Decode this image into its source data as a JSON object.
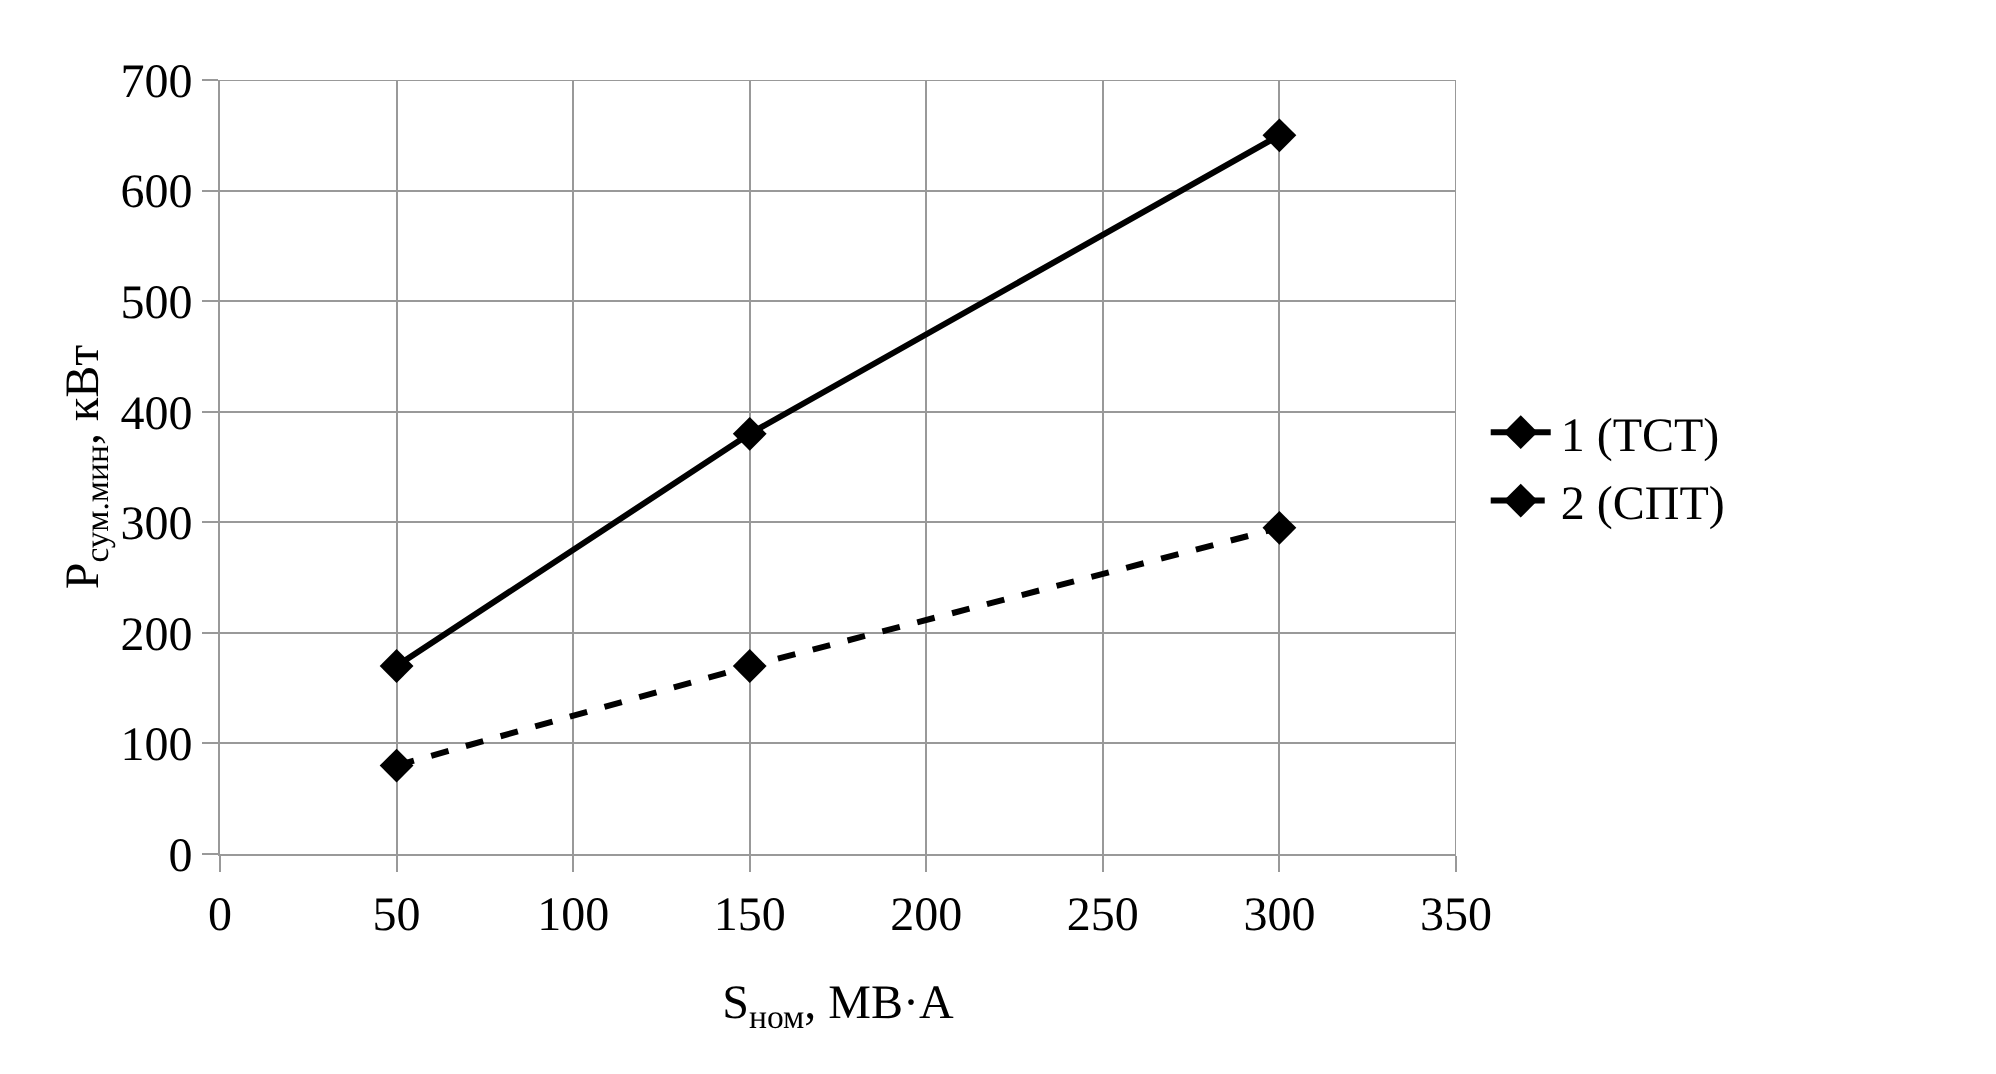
{
  "chart_data": {
    "type": "line",
    "xlabel": "S$_{ном}$, МВ·А",
    "ylabel": "P$_{сум.мин}$, кВт",
    "x": [
      50,
      150,
      300
    ],
    "series": [
      {
        "name": "1 (ТСТ)",
        "color": "#000000",
        "values": [
          170,
          380,
          650
        ],
        "line_style": "solid"
      },
      {
        "name": "2 (СПТ)",
        "color": "#000000",
        "values": [
          80,
          170,
          295
        ],
        "line_style": "dashed"
      }
    ],
    "xlim": [
      0,
      350
    ],
    "xticks": [
      0,
      50,
      100,
      150,
      200,
      250,
      300,
      350
    ],
    "ylim": [
      0,
      700
    ],
    "yticks": [
      0,
      100,
      200,
      300,
      400,
      500,
      600,
      700
    ],
    "grid": true,
    "legend": "right",
    "marker": "diamond"
  }
}
